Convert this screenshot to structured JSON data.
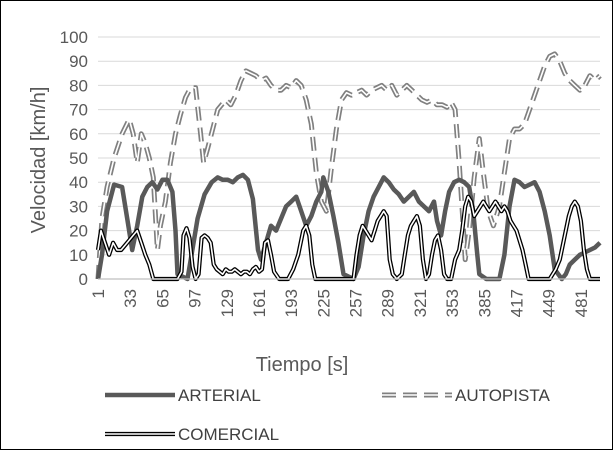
{
  "chart_data": {
    "type": "line",
    "xlabel": "Tiempo [s]",
    "ylabel": "Velocidad [km/h]",
    "xlim": [
      1,
      500
    ],
    "ylim": [
      0,
      100
    ],
    "yticks": [
      0,
      10,
      20,
      30,
      40,
      50,
      60,
      70,
      80,
      90,
      100
    ],
    "xticks": [
      1,
      33,
      65,
      97,
      129,
      161,
      193,
      225,
      257,
      289,
      321,
      353,
      385,
      417,
      449,
      481
    ],
    "grid": "horizontal",
    "legend_position": "bottom",
    "series": [
      {
        "name": "ARTERIAL",
        "color": "#595959",
        "style": "solid-thick",
        "points": [
          [
            1,
            0
          ],
          [
            5,
            10
          ],
          [
            10,
            28
          ],
          [
            17,
            39
          ],
          [
            25,
            38
          ],
          [
            30,
            25
          ],
          [
            35,
            12
          ],
          [
            40,
            22
          ],
          [
            45,
            34
          ],
          [
            50,
            38
          ],
          [
            55,
            40
          ],
          [
            60,
            37
          ],
          [
            65,
            41
          ],
          [
            70,
            41
          ],
          [
            75,
            36
          ],
          [
            78,
            20
          ],
          [
            80,
            2
          ],
          [
            90,
            0
          ],
          [
            100,
            25
          ],
          [
            107,
            35
          ],
          [
            114,
            40
          ],
          [
            120,
            42
          ],
          [
            125,
            41
          ],
          [
            130,
            41
          ],
          [
            135,
            40
          ],
          [
            140,
            42
          ],
          [
            145,
            43
          ],
          [
            150,
            41
          ],
          [
            155,
            33
          ],
          [
            160,
            12
          ],
          [
            163,
            8
          ],
          [
            168,
            15
          ],
          [
            173,
            22
          ],
          [
            178,
            20
          ],
          [
            183,
            25
          ],
          [
            188,
            30
          ],
          [
            193,
            32
          ],
          [
            198,
            34
          ],
          [
            203,
            28
          ],
          [
            208,
            22
          ],
          [
            213,
            26
          ],
          [
            218,
            32
          ],
          [
            223,
            36
          ],
          [
            225,
            42
          ],
          [
            230,
            36
          ],
          [
            235,
            26
          ],
          [
            240,
            15
          ],
          [
            245,
            2
          ],
          [
            255,
            0
          ],
          [
            260,
            5
          ],
          [
            265,
            18
          ],
          [
            270,
            28
          ],
          [
            275,
            34
          ],
          [
            280,
            38
          ],
          [
            285,
            42
          ],
          [
            290,
            40
          ],
          [
            295,
            37
          ],
          [
            300,
            35
          ],
          [
            305,
            32
          ],
          [
            310,
            34
          ],
          [
            315,
            36
          ],
          [
            320,
            32
          ],
          [
            325,
            30
          ],
          [
            330,
            28
          ],
          [
            335,
            32
          ],
          [
            338,
            24
          ],
          [
            342,
            18
          ],
          [
            346,
            28
          ],
          [
            350,
            36
          ],
          [
            355,
            40
          ],
          [
            360,
            41
          ],
          [
            365,
            40
          ],
          [
            370,
            38
          ],
          [
            374,
            28
          ],
          [
            378,
            10
          ],
          [
            380,
            2
          ],
          [
            387,
            0
          ],
          [
            400,
            0
          ],
          [
            405,
            10
          ],
          [
            410,
            30
          ],
          [
            415,
            41
          ],
          [
            420,
            40
          ],
          [
            425,
            38
          ],
          [
            430,
            39
          ],
          [
            435,
            40
          ],
          [
            440,
            36
          ],
          [
            445,
            28
          ],
          [
            450,
            18
          ],
          [
            455,
            4
          ],
          [
            462,
            0
          ],
          [
            466,
            2
          ],
          [
            470,
            6
          ],
          [
            475,
            8
          ],
          [
            480,
            10
          ],
          [
            485,
            11
          ],
          [
            490,
            12
          ],
          [
            495,
            13
          ],
          [
            500,
            15
          ]
        ]
      },
      {
        "name": "AUTOPISTA",
        "color": "#808080",
        "style": "double-dashed",
        "points": [
          [
            1,
            0
          ],
          [
            5,
            25
          ],
          [
            10,
            38
          ],
          [
            17,
            50
          ],
          [
            25,
            60
          ],
          [
            32,
            66
          ],
          [
            36,
            60
          ],
          [
            40,
            48
          ],
          [
            44,
            60
          ],
          [
            48,
            56
          ],
          [
            52,
            50
          ],
          [
            56,
            42
          ],
          [
            60,
            12
          ],
          [
            63,
            22
          ],
          [
            68,
            32
          ],
          [
            73,
            48
          ],
          [
            78,
            60
          ],
          [
            83,
            68
          ],
          [
            88,
            75
          ],
          [
            93,
            79
          ],
          [
            98,
            79
          ],
          [
            103,
            60
          ],
          [
            106,
            48
          ],
          [
            110,
            54
          ],
          [
            115,
            62
          ],
          [
            120,
            70
          ],
          [
            128,
            74
          ],
          [
            133,
            72
          ],
          [
            138,
            76
          ],
          [
            143,
            82
          ],
          [
            148,
            86
          ],
          [
            153,
            85
          ],
          [
            158,
            84
          ],
          [
            163,
            82
          ],
          [
            168,
            83
          ],
          [
            173,
            80
          ],
          [
            178,
            78
          ],
          [
            183,
            78
          ],
          [
            188,
            80
          ],
          [
            193,
            79
          ],
          [
            198,
            82
          ],
          [
            203,
            80
          ],
          [
            208,
            74
          ],
          [
            213,
            64
          ],
          [
            218,
            44
          ],
          [
            223,
            32
          ],
          [
            228,
            28
          ],
          [
            233,
            46
          ],
          [
            238,
            62
          ],
          [
            243,
            74
          ],
          [
            248,
            77
          ],
          [
            253,
            76
          ],
          [
            258,
            77
          ],
          [
            263,
            78
          ],
          [
            268,
            76
          ],
          [
            273,
            78
          ],
          [
            278,
            79
          ],
          [
            283,
            80
          ],
          [
            288,
            78
          ],
          [
            293,
            80
          ],
          [
            298,
            76
          ],
          [
            303,
            78
          ],
          [
            308,
            80
          ],
          [
            313,
            78
          ],
          [
            318,
            76
          ],
          [
            323,
            74
          ],
          [
            328,
            73
          ],
          [
            333,
            74
          ],
          [
            338,
            72
          ],
          [
            343,
            72
          ],
          [
            348,
            71
          ],
          [
            352,
            73
          ],
          [
            356,
            70
          ],
          [
            360,
            48
          ],
          [
            364,
            22
          ],
          [
            366,
            8
          ],
          [
            370,
            20
          ],
          [
            375,
            42
          ],
          [
            380,
            58
          ],
          [
            384,
            44
          ],
          [
            389,
            28
          ],
          [
            394,
            22
          ],
          [
            400,
            30
          ],
          [
            405,
            44
          ],
          [
            410,
            58
          ],
          [
            415,
            62
          ],
          [
            420,
            62
          ],
          [
            425,
            64
          ],
          [
            430,
            70
          ],
          [
            435,
            76
          ],
          [
            440,
            82
          ],
          [
            445,
            88
          ],
          [
            450,
            92
          ],
          [
            455,
            93
          ],
          [
            460,
            90
          ],
          [
            465,
            85
          ],
          [
            470,
            82
          ],
          [
            475,
            80
          ],
          [
            480,
            78
          ],
          [
            485,
            80
          ],
          [
            490,
            84
          ],
          [
            495,
            82
          ],
          [
            500,
            84
          ]
        ]
      },
      {
        "name": "COMERCIAL",
        "color": "#000000",
        "style": "double-solid",
        "points": [
          [
            1,
            12
          ],
          [
            4,
            20
          ],
          [
            8,
            15
          ],
          [
            12,
            10
          ],
          [
            16,
            15
          ],
          [
            20,
            12
          ],
          [
            24,
            12
          ],
          [
            28,
            14
          ],
          [
            32,
            16
          ],
          [
            36,
            18
          ],
          [
            40,
            20
          ],
          [
            44,
            15
          ],
          [
            48,
            10
          ],
          [
            52,
            6
          ],
          [
            56,
            0
          ],
          [
            70,
            0
          ],
          [
            80,
            0
          ],
          [
            84,
            3
          ],
          [
            86,
            18
          ],
          [
            89,
            21
          ],
          [
            92,
            17
          ],
          [
            95,
            5
          ],
          [
            98,
            0
          ],
          [
            101,
            2
          ],
          [
            104,
            17
          ],
          [
            107,
            18
          ],
          [
            110,
            17
          ],
          [
            113,
            15
          ],
          [
            116,
            6
          ],
          [
            119,
            4
          ],
          [
            122,
            3
          ],
          [
            125,
            2
          ],
          [
            128,
            4
          ],
          [
            131,
            3
          ],
          [
            134,
            3
          ],
          [
            137,
            4
          ],
          [
            140,
            3
          ],
          [
            143,
            2
          ],
          [
            146,
            3
          ],
          [
            149,
            3
          ],
          [
            152,
            2
          ],
          [
            155,
            4
          ],
          [
            158,
            5
          ],
          [
            161,
            3
          ],
          [
            164,
            4
          ],
          [
            167,
            15
          ],
          [
            170,
            16
          ],
          [
            173,
            10
          ],
          [
            176,
            3
          ],
          [
            181,
            0
          ],
          [
            190,
            0
          ],
          [
            195,
            4
          ],
          [
            200,
            10
          ],
          [
            205,
            20
          ],
          [
            208,
            22
          ],
          [
            211,
            18
          ],
          [
            214,
            6
          ],
          [
            217,
            0
          ],
          [
            235,
            0
          ],
          [
            245,
            0
          ],
          [
            255,
            0
          ],
          [
            258,
            10
          ],
          [
            261,
            18
          ],
          [
            264,
            22
          ],
          [
            267,
            20
          ],
          [
            270,
            18
          ],
          [
            273,
            16
          ],
          [
            276,
            20
          ],
          [
            279,
            24
          ],
          [
            282,
            26
          ],
          [
            285,
            28
          ],
          [
            288,
            26
          ],
          [
            291,
            8
          ],
          [
            294,
            2
          ],
          [
            298,
            0
          ],
          [
            303,
            2
          ],
          [
            306,
            10
          ],
          [
            309,
            18
          ],
          [
            312,
            22
          ],
          [
            315,
            24
          ],
          [
            318,
            26
          ],
          [
            321,
            22
          ],
          [
            324,
            8
          ],
          [
            327,
            0
          ],
          [
            330,
            2
          ],
          [
            333,
            10
          ],
          [
            336,
            16
          ],
          [
            339,
            18
          ],
          [
            342,
            12
          ],
          [
            345,
            2
          ],
          [
            348,
            0
          ],
          [
            352,
            0
          ],
          [
            356,
            8
          ],
          [
            360,
            12
          ],
          [
            363,
            20
          ],
          [
            366,
            30
          ],
          [
            369,
            34
          ],
          [
            372,
            32
          ],
          [
            375,
            26
          ],
          [
            378,
            28
          ],
          [
            381,
            30
          ],
          [
            384,
            32
          ],
          [
            387,
            30
          ],
          [
            390,
            28
          ],
          [
            393,
            30
          ],
          [
            396,
            32
          ],
          [
            399,
            30
          ],
          [
            402,
            28
          ],
          [
            405,
            30
          ],
          [
            408,
            28
          ],
          [
            411,
            24
          ],
          [
            414,
            22
          ],
          [
            417,
            20
          ],
          [
            420,
            16
          ],
          [
            423,
            12
          ],
          [
            426,
            6
          ],
          [
            429,
            0
          ],
          [
            450,
            0
          ],
          [
            456,
            4
          ],
          [
            460,
            8
          ],
          [
            463,
            14
          ],
          [
            466,
            20
          ],
          [
            469,
            26
          ],
          [
            472,
            30
          ],
          [
            475,
            32
          ],
          [
            478,
            30
          ],
          [
            481,
            24
          ],
          [
            484,
            12
          ],
          [
            487,
            4
          ],
          [
            490,
            0
          ],
          [
            500,
            0
          ]
        ]
      }
    ]
  }
}
